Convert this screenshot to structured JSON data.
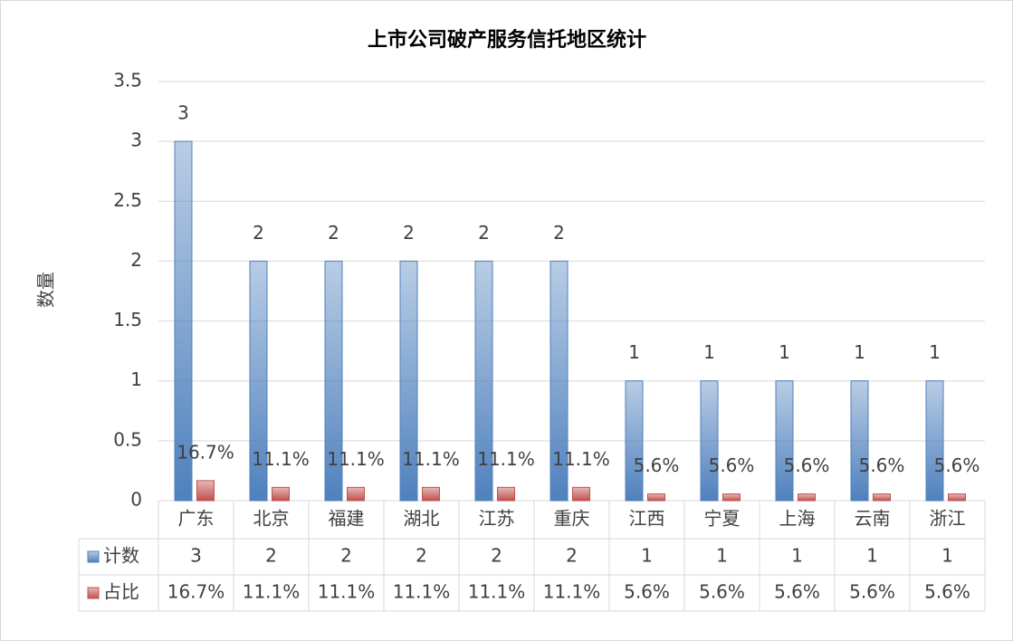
{
  "chart_data": {
    "type": "bar",
    "title": "上市公司破产服务信托地区统计",
    "y_label": "数量",
    "categories": [
      "广东",
      "北京",
      "福建",
      "湖北",
      "江苏",
      "重庆",
      "江西",
      "宁夏",
      "上海",
      "云南",
      "浙江"
    ],
    "series": [
      {
        "name": "计数",
        "color": "#4f81bd",
        "values": [
          3,
          2,
          2,
          2,
          2,
          2,
          1,
          1,
          1,
          1,
          1
        ]
      },
      {
        "name": "占比",
        "color": "#c0504d",
        "values": [
          0.167,
          0.111,
          0.111,
          0.111,
          0.111,
          0.111,
          0.056,
          0.056,
          0.056,
          0.056,
          0.056
        ],
        "value_labels": [
          "16.7%",
          "11.1%",
          "11.1%",
          "11.1%",
          "11.1%",
          "11.1%",
          "5.6%",
          "5.6%",
          "5.6%",
          "5.6%",
          "5.6%"
        ]
      }
    ],
    "ylim": [
      0,
      3.5
    ],
    "yticks": [
      0,
      0.5,
      1,
      1.5,
      2,
      2.5,
      3,
      3.5
    ],
    "grid": true
  }
}
